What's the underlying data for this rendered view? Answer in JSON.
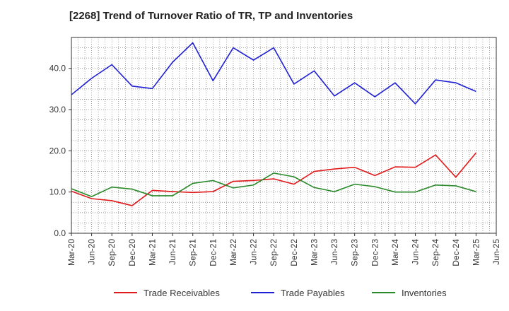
{
  "chart_data": {
    "type": "line",
    "title": "[2268]  Trend of Turnover Ratio of TR, TP and Inventories",
    "xlabel": "",
    "ylabel": "",
    "ylim": [
      0,
      47.5
    ],
    "yticks": [
      "0.0",
      "10.0",
      "20.0",
      "30.0",
      "40.0"
    ],
    "ytick_values": [
      0,
      10,
      20,
      30,
      40
    ],
    "grid": true,
    "legend_position": "bottom",
    "x_tick_labels": [
      "Mar-20",
      "Jun-20",
      "Sep-20",
      "Dec-20",
      "Mar-21",
      "Jun-21",
      "Sep-21",
      "Dec-21",
      "Mar-22",
      "Jun-22",
      "Sep-22",
      "Dec-22",
      "Mar-23",
      "Jun-23",
      "Sep-23",
      "Dec-23",
      "Mar-24",
      "Jun-24",
      "Sep-24",
      "Dec-24",
      "Mar-25",
      "Jun-25"
    ],
    "x": [
      "Mar-20",
      "Jun-20",
      "Sep-20",
      "Dec-20",
      "Mar-21",
      "Jun-21",
      "Sep-21",
      "Dec-21",
      "Mar-22",
      "Jun-22",
      "Sep-22",
      "Dec-22",
      "Mar-23",
      "Jun-23",
      "Sep-23",
      "Dec-23",
      "Mar-24",
      "Jun-24",
      "Sep-24",
      "Dec-24",
      "Mar-25"
    ],
    "series": [
      {
        "name": "Trade Receivables",
        "color": "#e31a1c",
        "values": [
          10.2,
          8.4,
          7.9,
          6.7,
          10.4,
          10.1,
          9.9,
          10.1,
          12.6,
          12.8,
          13.2,
          11.9,
          15.0,
          15.6,
          16.0,
          14.0,
          16.1,
          16.0,
          19.0,
          13.6,
          19.5
        ]
      },
      {
        "name": "Trade Payables",
        "color": "#1f1fd6",
        "values": [
          33.6,
          37.6,
          40.9,
          35.7,
          35.1,
          41.5,
          46.2,
          37.0,
          45.0,
          42.0,
          45.0,
          36.2,
          39.4,
          33.3,
          36.5,
          33.1,
          36.5,
          31.4,
          37.2,
          36.5,
          34.4
        ]
      },
      {
        "name": "Inventories",
        "color": "#2a8a2a",
        "values": [
          10.8,
          8.9,
          11.2,
          10.7,
          9.1,
          9.1,
          12.1,
          12.8,
          11.0,
          11.7,
          14.6,
          13.7,
          11.1,
          10.1,
          11.9,
          11.3,
          10.0,
          10.0,
          11.7,
          11.5,
          10.1
        ]
      }
    ]
  }
}
